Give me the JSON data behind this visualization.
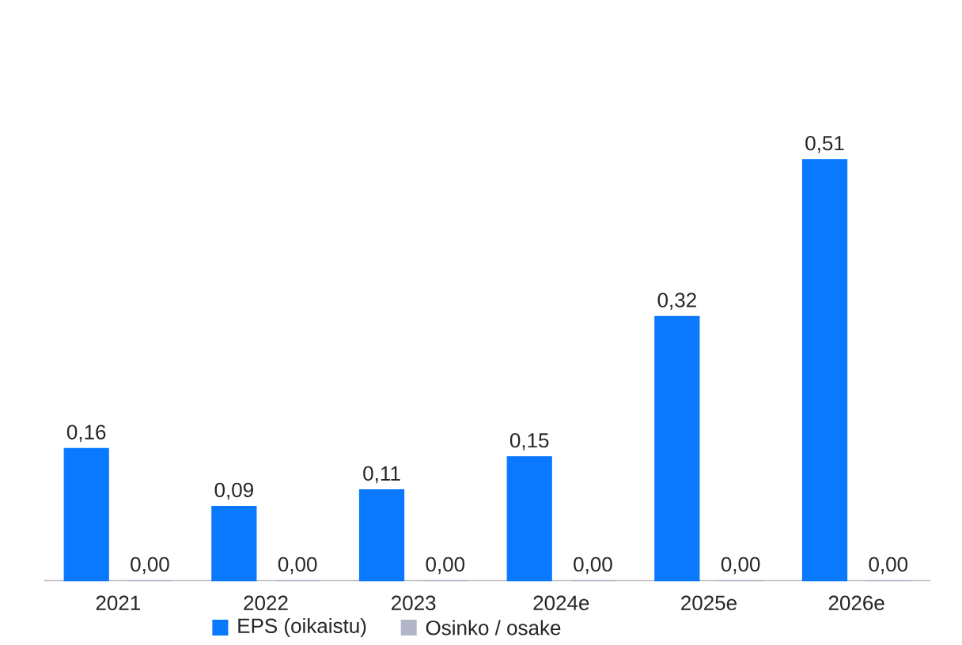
{
  "chart_data": {
    "type": "bar",
    "categories": [
      "2021",
      "2022",
      "2023",
      "2024e",
      "2025e",
      "2026e"
    ],
    "series": [
      {
        "name": "EPS (oikaistu)",
        "color": "#0a78ff",
        "values": [
          0.16,
          0.09,
          0.11,
          0.15,
          0.32,
          0.51
        ],
        "value_labels": [
          "0,16",
          "0,09",
          "0,11",
          "0,15",
          "0,32",
          "0,51"
        ]
      },
      {
        "name": "Osinko / osake",
        "color": "#b3b6c8",
        "values": [
          0,
          0,
          0,
          0,
          0,
          0
        ],
        "value_labels": [
          "0,00",
          "0,00",
          "0,00",
          "0,00",
          "0,00",
          "0,00"
        ]
      }
    ],
    "legend": "bottom"
  }
}
